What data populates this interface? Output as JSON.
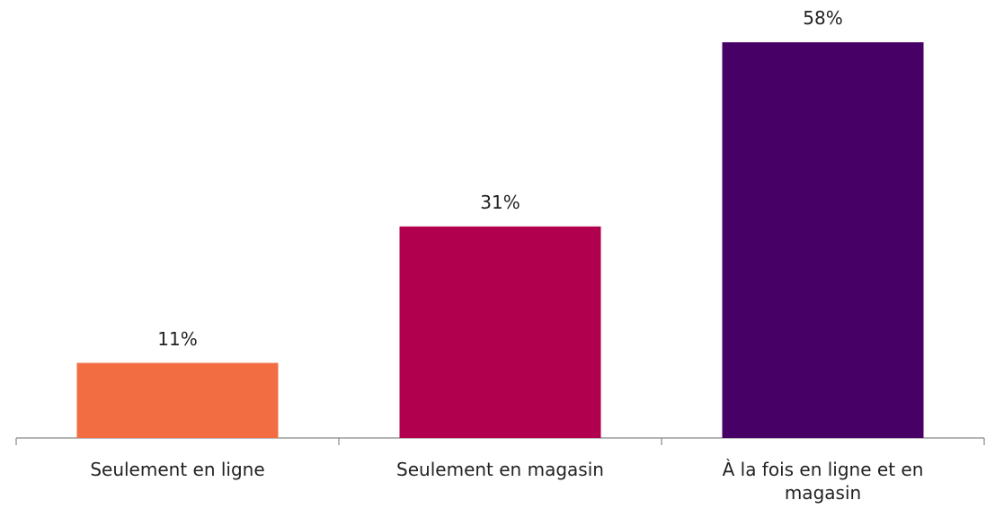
{
  "chart_data": {
    "type": "bar",
    "categories": [
      "Seulement en ligne",
      "Seulement en magasin",
      "À la fois en ligne et en magasin"
    ],
    "values": [
      11,
      31,
      58
    ],
    "value_labels": [
      "11%",
      "31%",
      "58%"
    ],
    "colors": [
      "#f26d42",
      "#b0004e",
      "#460066"
    ]
  }
}
